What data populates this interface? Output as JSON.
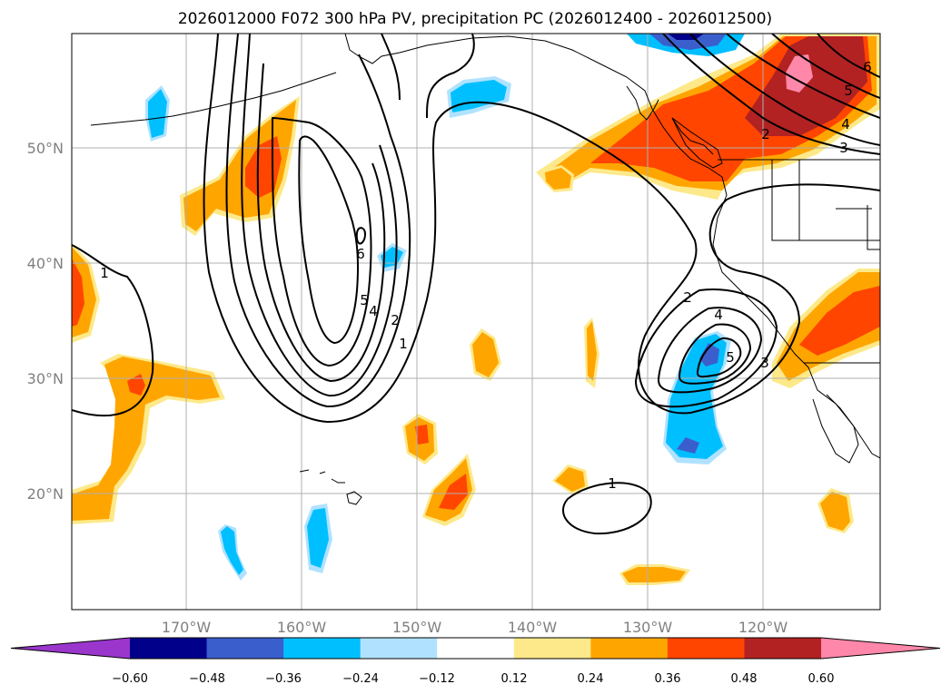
{
  "title": "2026012000 F072 300 hPa PV, precipitation PC (2026012400 - 2026012500)",
  "map": {
    "lat_labels": [
      "50°N",
      "40°N",
      "30°N",
      "20°N"
    ],
    "lon_labels": [
      "170°W",
      "160°W",
      "150°W",
      "140°W",
      "130°W",
      "120°W"
    ],
    "grid": true,
    "pv_contour_labels": [
      "1",
      "2",
      "3",
      "4",
      "5",
      "6"
    ],
    "colors": {
      "coast": "#000000",
      "grid": "#b0b0b0",
      "contour": "#000000"
    }
  },
  "colorbar": {
    "ticks": [
      "−0.60",
      "−0.48",
      "−0.36",
      "−0.24",
      "−0.12",
      "0.12",
      "0.24",
      "0.36",
      "0.48",
      "0.60"
    ],
    "colors": [
      "#9a36cc",
      "#00008b",
      "#3a5fcd",
      "#00bfff",
      "#b0e2ff",
      "#ffffff",
      "#fde98a",
      "#ffa500",
      "#ff4500",
      "#b22222",
      "#ff88aa"
    ]
  }
}
